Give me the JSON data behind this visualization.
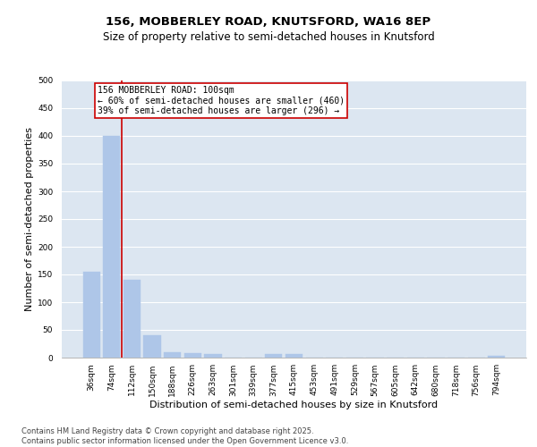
{
  "title_line1": "156, MOBBERLEY ROAD, KNUTSFORD, WA16 8EP",
  "title_line2": "Size of property relative to semi-detached houses in Knutsford",
  "xlabel": "Distribution of semi-detached houses by size in Knutsford",
  "ylabel": "Number of semi-detached properties",
  "categories": [
    "36sqm",
    "74sqm",
    "112sqm",
    "150sqm",
    "188sqm",
    "226sqm",
    "263sqm",
    "301sqm",
    "339sqm",
    "377sqm",
    "415sqm",
    "453sqm",
    "491sqm",
    "529sqm",
    "567sqm",
    "605sqm",
    "642sqm",
    "680sqm",
    "718sqm",
    "756sqm",
    "794sqm"
  ],
  "values": [
    155,
    400,
    140,
    40,
    10,
    8,
    6,
    0,
    0,
    6,
    6,
    0,
    0,
    0,
    0,
    0,
    0,
    0,
    0,
    0,
    3
  ],
  "bar_color": "#aec6e8",
  "bar_edge_color": "#aec6e8",
  "vline_color": "#cc0000",
  "annotation_text": "156 MOBBERLEY ROAD: 100sqm\n← 60% of semi-detached houses are smaller (460)\n39% of semi-detached houses are larger (296) →",
  "annotation_box_color": "#ffffff",
  "annotation_box_edge": "#cc0000",
  "ylim": [
    0,
    500
  ],
  "yticks": [
    0,
    50,
    100,
    150,
    200,
    250,
    300,
    350,
    400,
    450,
    500
  ],
  "plot_bg_color": "#dce6f1",
  "footer_text": "Contains HM Land Registry data © Crown copyright and database right 2025.\nContains public sector information licensed under the Open Government Licence v3.0.",
  "title_fontsize": 9.5,
  "subtitle_fontsize": 8.5,
  "axis_label_fontsize": 8,
  "tick_fontsize": 6.5,
  "annotation_fontsize": 7,
  "footer_fontsize": 6
}
